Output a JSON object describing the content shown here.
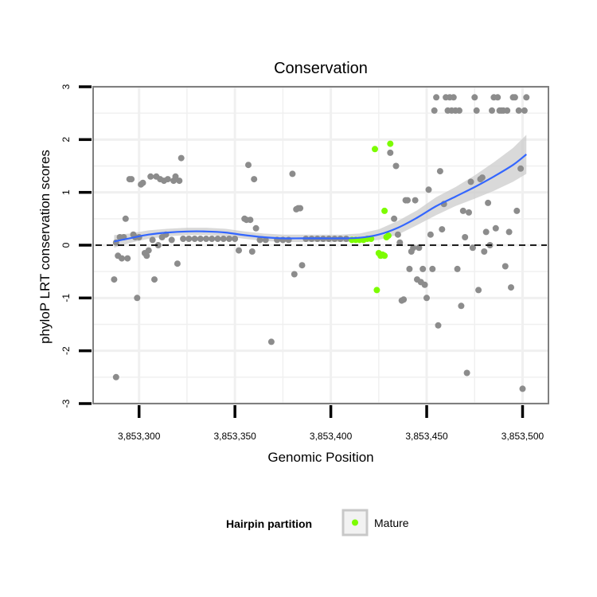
{
  "chart_data": {
    "type": "scatter",
    "title": "Conservation",
    "xlabel": "Genomic Position",
    "ylabel": "phyloP LRT conservation scores",
    "xlim": [
      3853278,
      3853505
    ],
    "ylim": [
      -3,
      3
    ],
    "x_ticks": [
      3853300,
      3853350,
      3853400,
      3853450,
      3853500
    ],
    "x_tick_labels": [
      "3,853,300",
      "3,853,350",
      "3,853,400",
      "3,853,450",
      "3,853,500"
    ],
    "y_ticks": [
      -3,
      -2,
      -1,
      0,
      1,
      2,
      3
    ],
    "y_tick_labels": [
      "-3",
      "-2",
      "-1",
      "0",
      "1",
      "2",
      "3"
    ],
    "reference_line": {
      "y": 0,
      "style": "dashed"
    },
    "legend": {
      "title": "Hairpin partition",
      "entries": [
        {
          "label": "Mature",
          "color": "#7cfc00"
        }
      ]
    },
    "colors": {
      "other": "#8c8c8c",
      "mature": "#7cfc00",
      "smooth": "#3366ff",
      "band": "#cccccc",
      "grid": "#f0f0f0",
      "border": "#7f7f7f"
    },
    "series": [
      {
        "name": "Other",
        "points": [
          [
            3853287,
            -0.65
          ],
          [
            3853288,
            -2.5
          ],
          [
            3853288,
            0.05
          ],
          [
            3853289,
            -0.2
          ],
          [
            3853290,
            0.15
          ],
          [
            3853291,
            -0.25
          ],
          [
            3853292,
            0.15
          ],
          [
            3853293,
            0.5
          ],
          [
            3853294,
            -0.25
          ],
          [
            3853295,
            1.25
          ],
          [
            3853296,
            1.25
          ],
          [
            3853297,
            0.2
          ],
          [
            3853298,
            0.15
          ],
          [
            3853299,
            -1.0
          ],
          [
            3853300,
            0.15
          ],
          [
            3853301,
            1.15
          ],
          [
            3853302,
            1.18
          ],
          [
            3853303,
            -0.15
          ],
          [
            3853304,
            -0.2
          ],
          [
            3853305,
            -0.1
          ],
          [
            3853306,
            1.3
          ],
          [
            3853307,
            0.1
          ],
          [
            3853308,
            -0.65
          ],
          [
            3853309,
            1.3
          ],
          [
            3853310,
            0.0
          ],
          [
            3853311,
            1.25
          ],
          [
            3853312,
            0.15
          ],
          [
            3853313,
            1.22
          ],
          [
            3853314,
            0.2
          ],
          [
            3853315,
            1.25
          ],
          [
            3853317,
            0.1
          ],
          [
            3853318,
            1.22
          ],
          [
            3853319,
            1.3
          ],
          [
            3853320,
            -0.35
          ],
          [
            3853321,
            1.22
          ],
          [
            3853322,
            1.65
          ],
          [
            3853323,
            0.12
          ],
          [
            3853326,
            0.12
          ],
          [
            3853329,
            0.12
          ],
          [
            3853332,
            0.12
          ],
          [
            3853335,
            0.12
          ],
          [
            3853338,
            0.12
          ],
          [
            3853341,
            0.12
          ],
          [
            3853344,
            0.12
          ],
          [
            3853347,
            0.12
          ],
          [
            3853350,
            0.12
          ],
          [
            3853352,
            -0.1
          ],
          [
            3853355,
            0.5
          ],
          [
            3853356,
            0.48
          ],
          [
            3853357,
            1.52
          ],
          [
            3853358,
            0.48
          ],
          [
            3853359,
            -0.12
          ],
          [
            3853360,
            1.25
          ],
          [
            3853361,
            0.32
          ],
          [
            3853363,
            0.1
          ],
          [
            3853366,
            0.1
          ],
          [
            3853369,
            -1.83
          ],
          [
            3853372,
            0.1
          ],
          [
            3853375,
            0.1
          ],
          [
            3853378,
            0.1
          ],
          [
            3853380,
            1.35
          ],
          [
            3853381,
            -0.55
          ],
          [
            3853382,
            0.68
          ],
          [
            3853383,
            0.7
          ],
          [
            3853384,
            0.7
          ],
          [
            3853385,
            -0.38
          ],
          [
            3853387,
            0.12
          ],
          [
            3853390,
            0.12
          ],
          [
            3853393,
            0.12
          ],
          [
            3853396,
            0.12
          ],
          [
            3853399,
            0.12
          ],
          [
            3853402,
            0.12
          ],
          [
            3853405,
            0.12
          ],
          [
            3853408,
            0.12
          ],
          [
            3853431,
            1.75
          ],
          [
            3853433,
            0.5
          ],
          [
            3853434,
            1.5
          ],
          [
            3853435,
            0.2
          ],
          [
            3853436,
            0.05
          ],
          [
            3853437,
            -1.05
          ],
          [
            3853438,
            -1.03
          ],
          [
            3853439,
            0.85
          ],
          [
            3853440,
            0.85
          ],
          [
            3853441,
            -0.45
          ],
          [
            3853442,
            -0.12
          ],
          [
            3853443,
            -0.05
          ],
          [
            3853444,
            0.85
          ],
          [
            3853445,
            -0.65
          ],
          [
            3853446,
            -0.05
          ],
          [
            3853447,
            -0.7
          ],
          [
            3853448,
            -0.45
          ],
          [
            3853449,
            -0.75
          ],
          [
            3853450,
            -1.0
          ],
          [
            3853451,
            1.05
          ],
          [
            3853452,
            0.2
          ],
          [
            3853453,
            -0.45
          ],
          [
            3853454,
            2.55
          ],
          [
            3853455,
            2.8
          ],
          [
            3853456,
            -1.52
          ],
          [
            3853457,
            1.4
          ],
          [
            3853458,
            0.3
          ],
          [
            3853459,
            0.78
          ],
          [
            3853460,
            2.8
          ],
          [
            3853461,
            2.55
          ],
          [
            3853462,
            2.8
          ],
          [
            3853463,
            2.55
          ],
          [
            3853464,
            2.8
          ],
          [
            3853465,
            2.55
          ],
          [
            3853466,
            -0.45
          ],
          [
            3853467,
            2.55
          ],
          [
            3853468,
            -1.15
          ],
          [
            3853469,
            0.65
          ],
          [
            3853470,
            0.15
          ],
          [
            3853471,
            -2.42
          ],
          [
            3853472,
            0.62
          ],
          [
            3853473,
            1.2
          ],
          [
            3853474,
            -0.05
          ],
          [
            3853475,
            2.8
          ],
          [
            3853476,
            2.55
          ],
          [
            3853477,
            -0.85
          ],
          [
            3853478,
            1.25
          ],
          [
            3853479,
            1.28
          ],
          [
            3853480,
            -0.12
          ],
          [
            3853481,
            0.25
          ],
          [
            3853482,
            0.8
          ],
          [
            3853483,
            0.0
          ],
          [
            3853484,
            2.55
          ],
          [
            3853485,
            2.8
          ],
          [
            3853486,
            0.32
          ],
          [
            3853487,
            2.8
          ],
          [
            3853488,
            2.55
          ],
          [
            3853489,
            2.55
          ],
          [
            3853490,
            2.55
          ],
          [
            3853491,
            -0.4
          ],
          [
            3853492,
            2.55
          ],
          [
            3853493,
            0.25
          ],
          [
            3853494,
            -0.8
          ],
          [
            3853495,
            2.8
          ],
          [
            3853496,
            2.8
          ],
          [
            3853497,
            0.65
          ],
          [
            3853498,
            2.55
          ],
          [
            3853499,
            1.45
          ],
          [
            3853500,
            -2.72
          ],
          [
            3853501,
            2.55
          ],
          [
            3853502,
            2.8
          ]
        ]
      },
      {
        "name": "Mature",
        "points": [
          [
            3853411,
            0.1
          ],
          [
            3853413,
            0.1
          ],
          [
            3853415,
            0.1
          ],
          [
            3853417,
            0.1
          ],
          [
            3853419,
            0.12
          ],
          [
            3853421,
            0.12
          ],
          [
            3853423,
            1.82
          ],
          [
            3853424,
            -0.85
          ],
          [
            3853425,
            -0.15
          ],
          [
            3853426,
            -0.2
          ],
          [
            3853427,
            -0.18
          ],
          [
            3853428,
            -0.2
          ],
          [
            3853428,
            0.65
          ],
          [
            3853429,
            0.15
          ],
          [
            3853430,
            0.18
          ],
          [
            3853431,
            1.92
          ]
        ]
      }
    ],
    "smooth": {
      "name": "loess fit",
      "x": [
        3853287,
        3853295,
        3853305,
        3853315,
        3853325,
        3853335,
        3853345,
        3853355,
        3853365,
        3853375,
        3853385,
        3853395,
        3853405,
        3853415,
        3853425,
        3853435,
        3853445,
        3853455,
        3853465,
        3853475,
        3853485,
        3853495,
        3853502
      ],
      "y": [
        0.07,
        0.13,
        0.2,
        0.24,
        0.26,
        0.26,
        0.24,
        0.19,
        0.15,
        0.13,
        0.13,
        0.13,
        0.13,
        0.14,
        0.2,
        0.33,
        0.52,
        0.74,
        0.92,
        1.1,
        1.3,
        1.52,
        1.72
      ],
      "lower": [
        -0.05,
        0.04,
        0.12,
        0.17,
        0.19,
        0.19,
        0.17,
        0.12,
        0.08,
        0.06,
        0.06,
        0.06,
        0.06,
        0.06,
        0.1,
        0.2,
        0.38,
        0.57,
        0.74,
        0.88,
        1.03,
        1.2,
        1.35
      ],
      "upper": [
        0.19,
        0.22,
        0.28,
        0.31,
        0.33,
        0.33,
        0.31,
        0.26,
        0.22,
        0.2,
        0.2,
        0.2,
        0.2,
        0.22,
        0.3,
        0.46,
        0.66,
        0.91,
        1.1,
        1.32,
        1.57,
        1.84,
        2.09
      ]
    }
  }
}
